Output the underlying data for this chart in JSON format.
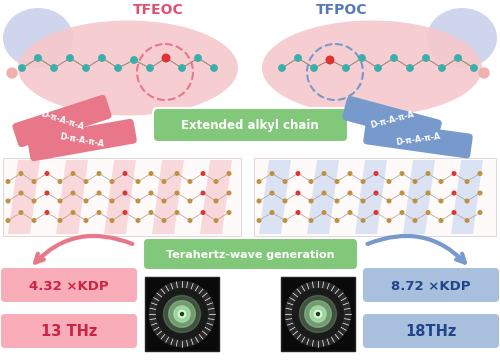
{
  "bg_color": "#ffffff",
  "label_tfeoc": "TFEOC",
  "label_tfpoc": "TFPOC",
  "label_extended": "Extended alkyl chain",
  "label_thz": "Terahertz-wave generation",
  "label_kdp_left": "4.32 ×KDP",
  "label_thz_left": "13 THz",
  "label_kdp_right": "8.72 ×KDP",
  "label_thz_right": "18THz",
  "label_d_a_left1": "D-π-A-π-A",
  "label_d_a_left2": "D-π-A-π-A",
  "label_d_a_right1": "D-π-A-π-A",
  "label_d_a_right2": "D-π-A-π-A",
  "pink_color": "#e8778a",
  "pink_light": "#f9c0c8",
  "pink_bg": "#f9adb8",
  "blue_color": "#7799cc",
  "blue_light": "#b8cce8",
  "blue_bg": "#a8c0dd",
  "green_bg": "#82c87a",
  "teal": "#3aafaa",
  "red_ball": "#dd3333",
  "pink_blob": "#f5c8cc",
  "blue_blob": "#c8d8f0"
}
